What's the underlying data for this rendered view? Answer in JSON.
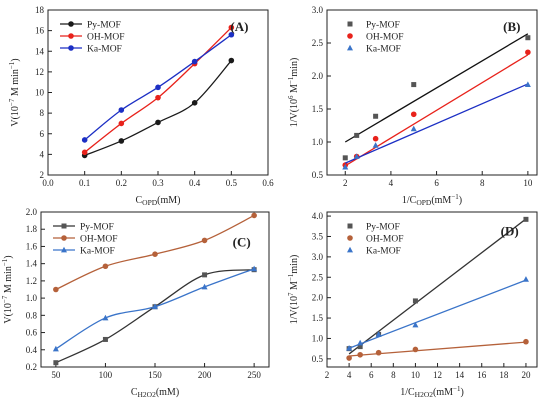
{
  "chart_data": [
    {
      "type": "line",
      "panel_label": "(A)",
      "xlabel_main": "C",
      "xlabel_sub": "OPD",
      "xlabel_tail": "(mM)",
      "ylabel_parts": [
        "V(10",
        "−7",
        " M min",
        "−1",
        ")"
      ],
      "xlim": [
        0,
        0.6
      ],
      "ylim": [
        2,
        18
      ],
      "xticks": [
        0.0,
        0.1,
        0.2,
        0.3,
        0.4,
        0.5,
        0.6
      ],
      "xtick_labels": [
        "0.0",
        "0.1",
        "0.2",
        "0.3",
        "0.4",
        "0.5",
        "0.6"
      ],
      "yticks": [
        2,
        4,
        6,
        8,
        10,
        12,
        14,
        16,
        18
      ],
      "ytick_labels": [
        "2",
        "4",
        "6",
        "8",
        "10",
        "12",
        "14",
        "16",
        "18"
      ],
      "legend_position": "top-left",
      "series": [
        {
          "name": "Py-MOF",
          "color": "#1a1a1a",
          "marker": "circle",
          "x": [
            0.1,
            0.2,
            0.3,
            0.4,
            0.5
          ],
          "values": [
            3.9,
            5.3,
            7.1,
            9.0,
            13.1
          ],
          "fit": "curve"
        },
        {
          "name": "OH-MOF",
          "color": "#e8221b",
          "marker": "circle",
          "x": [
            0.1,
            0.2,
            0.3,
            0.4,
            0.5
          ],
          "values": [
            4.2,
            7.0,
            9.5,
            12.8,
            16.3
          ],
          "fit": "curve"
        },
        {
          "name": "Ka-MOF",
          "color": "#1c2fc4",
          "marker": "circle",
          "x": [
            0.1,
            0.2,
            0.3,
            0.4,
            0.5
          ],
          "values": [
            5.4,
            8.3,
            10.5,
            13.0,
            15.6
          ],
          "fit": "curve"
        }
      ]
    },
    {
      "type": "scatter",
      "panel_label": "(B)",
      "xlabel_main": "1/C",
      "xlabel_sub": "OPD",
      "xlabel_tail": "(mM",
      "xlabel_sup": "−1",
      "xlabel_end": ")",
      "ylabel_parts": [
        "1/V(10",
        "6",
        " M",
        "−1",
        "min)"
      ],
      "xlim": [
        1.2,
        10.4
      ],
      "ylim": [
        0.5,
        3.0
      ],
      "xticks": [
        2,
        4,
        6,
        8,
        10
      ],
      "xtick_labels": [
        "2",
        "4",
        "6",
        "8",
        "10"
      ],
      "yticks": [
        0.5,
        1.0,
        1.5,
        2.0,
        2.5,
        3.0
      ],
      "ytick_labels": [
        "0.5",
        "1.0",
        "1.5",
        "2.0",
        "2.5",
        "3.0"
      ],
      "legend_position": "top-left",
      "series": [
        {
          "name": "Py-MOF",
          "color": "#555555",
          "marker": "square",
          "line_color": "#111111",
          "x": [
            2,
            2.5,
            3.33,
            5,
            10
          ],
          "values": [
            0.76,
            1.1,
            1.39,
            1.87,
            2.58
          ],
          "fit": "linear",
          "fit_line": [
            1.0,
            2.64
          ]
        },
        {
          "name": "OH-MOF",
          "color": "#e8221b",
          "marker": "circle",
          "line_color": "#e8221b",
          "x": [
            2,
            2.5,
            3.33,
            5,
            10
          ],
          "values": [
            0.65,
            0.78,
            1.05,
            1.42,
            2.36
          ],
          "fit": "linear",
          "fit_line": [
            0.64,
            2.32
          ]
        },
        {
          "name": "Ka-MOF",
          "color": "#3a74c9",
          "marker": "triangle",
          "line_color": "#1c2fc4",
          "x": [
            2,
            2.5,
            3.33,
            5,
            10
          ],
          "values": [
            0.62,
            0.78,
            0.95,
            1.2,
            1.87
          ],
          "fit": "linear",
          "fit_line": [
            0.68,
            1.88
          ]
        }
      ]
    },
    {
      "type": "line",
      "panel_label": "(C)",
      "xlabel_main": "C",
      "xlabel_sub": "H2O2",
      "xlabel_tail": "(mM)",
      "ylabel_parts": [
        "V(10",
        "−7",
        " M min",
        "−1",
        ")"
      ],
      "xlim": [
        35,
        265
      ],
      "ylim": [
        0.2,
        2.0
      ],
      "xticks": [
        50,
        100,
        150,
        200,
        250
      ],
      "xtick_labels": [
        "50",
        "100",
        "150",
        "200",
        "250"
      ],
      "yticks": [
        0.2,
        0.4,
        0.6,
        0.8,
        1.0,
        1.2,
        1.4,
        1.6,
        1.8,
        2.0
      ],
      "ytick_labels": [
        "0.2",
        "0.4",
        "0.6",
        "0.8",
        "1.0",
        "1.2",
        "1.4",
        "1.6",
        "1.8",
        "2.0"
      ],
      "legend_position": "top-left",
      "series": [
        {
          "name": "Py-MOF",
          "color": "#555555",
          "marker": "square",
          "line_color": "#333333",
          "x": [
            50,
            100,
            150,
            200,
            250
          ],
          "values": [
            0.25,
            0.52,
            0.9,
            1.27,
            1.33
          ],
          "fit": "curve"
        },
        {
          "name": "OH-MOF",
          "color": "#b5613a",
          "marker": "circle",
          "line_color": "#b5613a",
          "x": [
            50,
            100,
            150,
            200,
            250
          ],
          "values": [
            1.1,
            1.37,
            1.51,
            1.67,
            1.96
          ],
          "fit": "curve"
        },
        {
          "name": "Ka-MOF",
          "color": "#3a74c9",
          "marker": "triangle",
          "line_color": "#3a74c9",
          "x": [
            50,
            100,
            150,
            200,
            250
          ],
          "values": [
            0.41,
            0.77,
            0.9,
            1.13,
            1.34
          ],
          "fit": "curve"
        }
      ]
    },
    {
      "type": "scatter",
      "panel_label": "(D)",
      "xlabel_main": "1/C",
      "xlabel_sub": "H2O2",
      "xlabel_tail": "(mM",
      "xlabel_sup": "−1",
      "xlabel_end": ")",
      "ylabel_parts": [
        "1/V(10",
        "7",
        " M",
        "−1",
        "min)"
      ],
      "xlim": [
        2,
        21
      ],
      "ylim": [
        0.3,
        4.1
      ],
      "xticks": [
        2,
        4,
        6,
        8,
        10,
        12,
        14,
        16,
        18,
        20
      ],
      "xtick_labels": [
        "2",
        "4",
        "6",
        "8",
        "10",
        "12",
        "14",
        "16",
        "18",
        "20"
      ],
      "yticks": [
        0.5,
        1.0,
        1.5,
        2.0,
        2.5,
        3.0,
        3.5,
        4.0
      ],
      "ytick_labels": [
        "0.5",
        "1.0",
        "1.5",
        "2.0",
        "2.5",
        "3.0",
        "3.5",
        "4.0"
      ],
      "legend_position": "top-left",
      "series": [
        {
          "name": "Py-MOF",
          "color": "#555555",
          "marker": "square",
          "line_color": "#333333",
          "x": [
            4,
            5,
            6.67,
            10,
            20
          ],
          "values": [
            0.75,
            0.8,
            1.1,
            1.92,
            3.92
          ],
          "fit": "linear",
          "fit_line": [
            0.62,
            3.93
          ]
        },
        {
          "name": "OH-MOF",
          "color": "#b5613a",
          "marker": "circle",
          "line_color": "#b5613a",
          "x": [
            4,
            5,
            6.67,
            10,
            20
          ],
          "values": [
            0.52,
            0.6,
            0.65,
            0.73,
            0.92
          ],
          "fit": "linear",
          "fit_line": [
            0.57,
            0.91
          ]
        },
        {
          "name": "Ka-MOF",
          "color": "#3a74c9",
          "marker": "triangle",
          "line_color": "#3a74c9",
          "x": [
            4,
            5,
            6.67,
            10,
            20
          ],
          "values": [
            0.76,
            0.89,
            1.1,
            1.33,
            2.45
          ],
          "fit": "linear",
          "fit_line": [
            0.76,
            2.43
          ]
        }
      ]
    }
  ]
}
